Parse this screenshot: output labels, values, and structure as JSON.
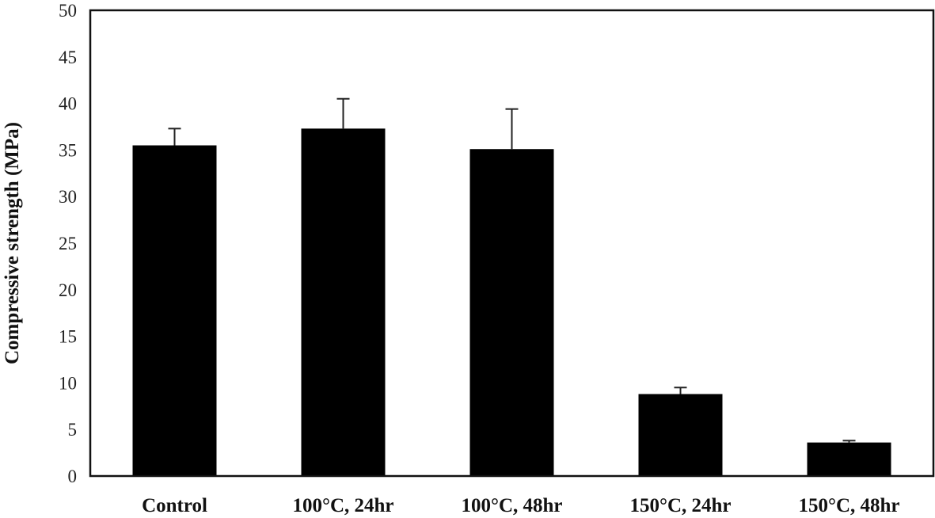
{
  "chart_data": {
    "type": "bar",
    "title": "",
    "xlabel": "",
    "ylabel": "Compressive strength (MPa)",
    "ylim": [
      0,
      50
    ],
    "yticks": [
      0,
      5,
      10,
      15,
      20,
      25,
      30,
      35,
      40,
      45,
      50
    ],
    "grid": false,
    "legend": null,
    "categories": [
      "Control",
      "100°C, 24hr",
      "100°C, 48hr",
      "150°C, 24hr",
      "150°C, 48hr"
    ],
    "values": [
      35.5,
      37.3,
      35.1,
      8.8,
      3.6
    ],
    "error_bars": [
      1.8,
      3.2,
      4.3,
      0.7,
      0.2
    ],
    "bar_color": "#000000"
  }
}
